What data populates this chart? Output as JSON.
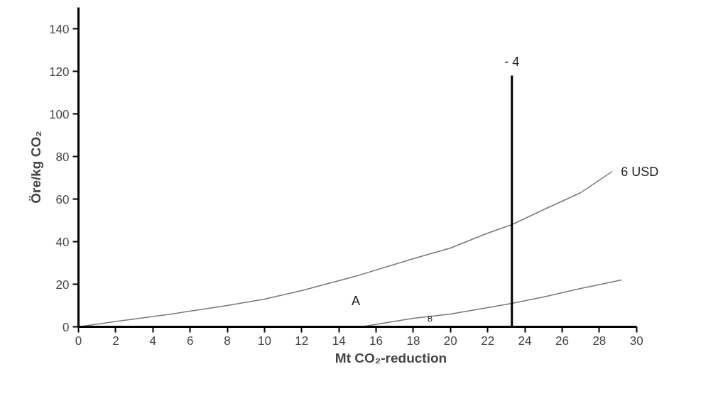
{
  "chart_data": {
    "type": "line",
    "xlabel": "Mt CO₂-reduction",
    "ylabel": "Öre/kg CO₂",
    "xlim": [
      0,
      30
    ],
    "ylim": [
      0,
      150
    ],
    "xticks": [
      0,
      2,
      4,
      6,
      8,
      10,
      12,
      14,
      16,
      18,
      20,
      22,
      24,
      26,
      28,
      30
    ],
    "yticks": [
      0,
      20,
      40,
      60,
      80,
      100,
      120,
      140
    ],
    "grid": false,
    "marker": "none",
    "line_style": "solid",
    "series": [
      {
        "name": "6 USD",
        "color": "#777777",
        "x": [
          0,
          2,
          5,
          8,
          10,
          12,
          15,
          18,
          20,
          22,
          23.3,
          25,
          27,
          28.7
        ],
        "values": [
          0,
          2.5,
          6,
          10,
          13,
          17,
          24,
          32,
          37,
          44,
          48,
          55,
          63,
          73
        ]
      },
      {
        "color": "#777777",
        "x": [
          15.2,
          18,
          20,
          22,
          23.3,
          25,
          27,
          29.2
        ],
        "values": [
          0,
          4,
          6,
          9,
          11,
          14,
          18,
          22
        ]
      },
      {
        "name": "- 4",
        "color": "#000000",
        "x": [
          23.3,
          23.3
        ],
        "values": [
          0,
          118
        ]
      }
    ],
    "annotations": [
      "A",
      "B"
    ]
  }
}
